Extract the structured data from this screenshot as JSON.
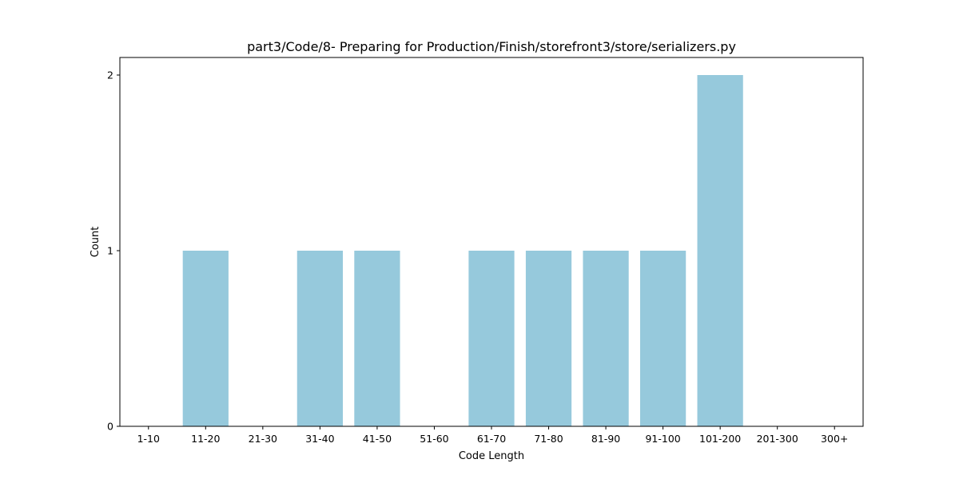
{
  "chart_data": {
    "type": "bar",
    "title": "part3/Code/8- Preparing for Production/Finish/storefront3/store/serializers.py",
    "xlabel": "Code Length",
    "ylabel": "Count",
    "categories": [
      "1-10",
      "11-20",
      "21-30",
      "31-40",
      "41-50",
      "51-60",
      "61-70",
      "71-80",
      "81-90",
      "91-100",
      "101-200",
      "201-300",
      "300+"
    ],
    "values": [
      0,
      1,
      0,
      1,
      1,
      0,
      1,
      1,
      1,
      1,
      2,
      0,
      0
    ],
    "ylim": [
      0,
      2.1
    ],
    "yticks": [
      0,
      1,
      2
    ],
    "grid": false,
    "bar_color": "#96c9dc"
  }
}
